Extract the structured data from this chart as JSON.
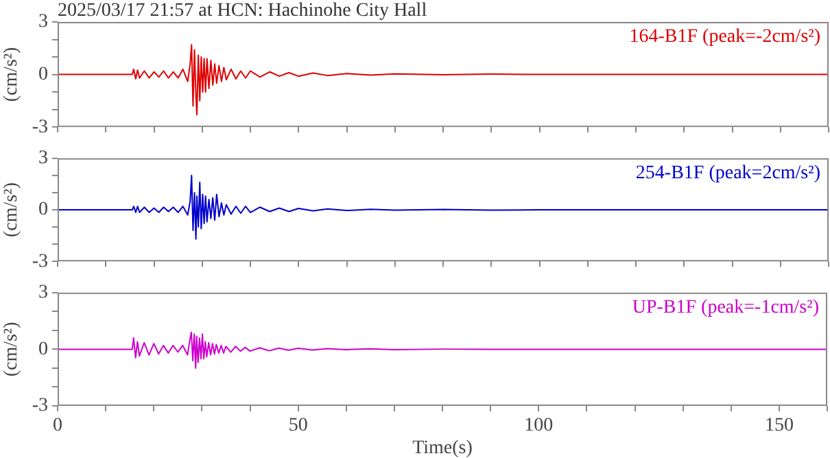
{
  "chart_data": [
    {
      "type": "line",
      "title": "2025/03/17 21:57 at HCN: Hachinohe City Hall",
      "ylabel": "(cm/s²)",
      "tick_labels": "y",
      "grid": false,
      "legend": false,
      "marker": "none",
      "xlim": [
        0,
        160
      ],
      "xticks": [
        0,
        {
          "value": 10,
          "label": null
        },
        {
          "value": 20,
          "label": null
        },
        {
          "value": 30,
          "label": null
        },
        {
          "value": 40,
          "label": null
        },
        50,
        {
          "value": 60,
          "label": null
        },
        {
          "value": 70,
          "label": null
        },
        {
          "value": 80,
          "label": null
        },
        {
          "value": 90,
          "label": null
        },
        100,
        {
          "value": 110,
          "label": null
        },
        {
          "value": 120,
          "label": null
        },
        {
          "value": 130,
          "label": null
        },
        {
          "value": 140,
          "label": null
        },
        150,
        {
          "value": 160,
          "label": null
        }
      ],
      "ylim": [
        -3,
        3
      ],
      "yticks": [
        -3,
        {
          "value": -2,
          "label": null
        },
        {
          "value": -1,
          "label": null
        },
        0,
        {
          "value": 1,
          "label": null
        },
        {
          "value": 2,
          "label": null
        },
        3
      ],
      "x": [
        0,
        15.5,
        15.8,
        16.2,
        16.6,
        17,
        18,
        19,
        20,
        21,
        22,
        23,
        24,
        25,
        26,
        27,
        27.5,
        27.8,
        28.1,
        28.4,
        28.7,
        28.9,
        29.2,
        29.5,
        29.8,
        30.1,
        30.4,
        30.7,
        31,
        31.4,
        31.8,
        32.2,
        32.6,
        33,
        33.5,
        34,
        34.5,
        35,
        36,
        37,
        38,
        39,
        40,
        42,
        44,
        46,
        48,
        50,
        53,
        56,
        60,
        65,
        70,
        80,
        90,
        100,
        160
      ],
      "series": [
        {
          "name": "164-B1F (peak=-2cm/s²)",
          "color": "#dd0000",
          "values": [
            0,
            0,
            0.3,
            -0.25,
            0.25,
            -0.2,
            0.2,
            -0.2,
            0.15,
            -0.15,
            0.2,
            -0.2,
            0.15,
            -0.2,
            0.3,
            -0.4,
            0.6,
            1.7,
            -1.8,
            1.4,
            -1.2,
            -2.3,
            1.1,
            -1.5,
            1.0,
            -1.0,
            0.9,
            -1.0,
            0.9,
            -0.8,
            0.8,
            -0.6,
            0.6,
            -0.5,
            0.5,
            -0.4,
            0.4,
            -0.3,
            0.3,
            -0.25,
            0.2,
            -0.2,
            0.2,
            -0.15,
            0.15,
            -0.1,
            0.1,
            -0.1,
            0.08,
            -0.06,
            0.05,
            -0.04,
            0.03,
            -0.02,
            0.02,
            0,
            0
          ]
        }
      ]
    },
    {
      "type": "line",
      "ylabel": "(cm/s²)",
      "tick_labels": "y",
      "grid": false,
      "legend": false,
      "marker": "none",
      "xlim": [
        0,
        160
      ],
      "xticks": [
        0,
        {
          "value": 10,
          "label": null
        },
        {
          "value": 20,
          "label": null
        },
        {
          "value": 30,
          "label": null
        },
        {
          "value": 40,
          "label": null
        },
        50,
        {
          "value": 60,
          "label": null
        },
        {
          "value": 70,
          "label": null
        },
        {
          "value": 80,
          "label": null
        },
        {
          "value": 90,
          "label": null
        },
        100,
        {
          "value": 110,
          "label": null
        },
        {
          "value": 120,
          "label": null
        },
        {
          "value": 130,
          "label": null
        },
        {
          "value": 140,
          "label": null
        },
        150,
        {
          "value": 160,
          "label": null
        }
      ],
      "ylim": [
        -3,
        3
      ],
      "yticks": [
        -3,
        {
          "value": -2,
          "label": null
        },
        {
          "value": -1,
          "label": null
        },
        0,
        {
          "value": 1,
          "label": null
        },
        {
          "value": 2,
          "label": null
        },
        3
      ],
      "x": [
        0,
        15.5,
        15.8,
        16.2,
        16.6,
        17,
        18,
        19,
        20,
        21,
        22,
        23,
        24,
        25,
        26,
        27,
        27.5,
        27.8,
        28.1,
        28.4,
        28.7,
        28.9,
        29.2,
        29.5,
        29.8,
        30.1,
        30.4,
        30.7,
        31,
        31.4,
        31.8,
        32.2,
        32.6,
        33,
        33.5,
        34,
        34.5,
        35,
        36,
        37,
        38,
        39,
        40,
        42,
        44,
        46,
        48,
        50,
        53,
        56,
        60,
        65,
        70,
        80,
        90,
        100,
        160
      ],
      "series": [
        {
          "name": "254-B1F (peak=2cm/s²)",
          "color": "#0000cc",
          "values": [
            0,
            0,
            0.2,
            -0.15,
            0.2,
            -0.15,
            0.15,
            -0.15,
            0.1,
            -0.15,
            0.15,
            -0.1,
            0.15,
            -0.15,
            0.2,
            -0.3,
            0.5,
            2.0,
            -1.2,
            1.0,
            -1.7,
            0.8,
            -1.0,
            1.6,
            -1.1,
            0.9,
            -0.8,
            0.8,
            -0.7,
            0.6,
            -0.5,
            0.7,
            -0.6,
            0.9,
            -0.4,
            0.4,
            -0.3,
            0.3,
            -0.25,
            0.2,
            -0.2,
            0.2,
            -0.15,
            0.15,
            -0.1,
            0.1,
            -0.1,
            0.08,
            -0.06,
            0.05,
            -0.04,
            0.03,
            -0.02,
            0.02,
            -0.02,
            0,
            0
          ]
        }
      ]
    },
    {
      "type": "line",
      "xlabel": "Time(s)",
      "ylabel": "(cm/s²)",
      "grid": false,
      "legend": false,
      "marker": "none",
      "xlim": [
        0,
        160
      ],
      "xticks": [
        0,
        {
          "value": 10,
          "label": null
        },
        {
          "value": 20,
          "label": null
        },
        {
          "value": 30,
          "label": null
        },
        {
          "value": 40,
          "label": null
        },
        50,
        {
          "value": 60,
          "label": null
        },
        {
          "value": 70,
          "label": null
        },
        {
          "value": 80,
          "label": null
        },
        {
          "value": 90,
          "label": null
        },
        100,
        {
          "value": 110,
          "label": null
        },
        {
          "value": 120,
          "label": null
        },
        {
          "value": 130,
          "label": null
        },
        {
          "value": 140,
          "label": null
        },
        150,
        {
          "value": 160,
          "label": null
        }
      ],
      "ylim": [
        -3,
        3
      ],
      "yticks": [
        -3,
        {
          "value": -2,
          "label": null
        },
        {
          "value": -1,
          "label": null
        },
        0,
        {
          "value": 1,
          "label": null
        },
        {
          "value": 2,
          "label": null
        },
        3
      ],
      "x": [
        0,
        15.5,
        15.8,
        16.2,
        16.6,
        17,
        18,
        19,
        20,
        21,
        22,
        23,
        24,
        25,
        26,
        27,
        27.5,
        27.8,
        28.1,
        28.4,
        28.7,
        28.9,
        29.2,
        29.5,
        29.8,
        30.1,
        30.4,
        30.7,
        31,
        31.4,
        31.8,
        32.2,
        32.6,
        33,
        33.5,
        34,
        34.5,
        35,
        36,
        37,
        38,
        39,
        40,
        42,
        44,
        46,
        48,
        50,
        53,
        56,
        60,
        65,
        70,
        80,
        90,
        100,
        160
      ],
      "series": [
        {
          "name": "UP-B1F (peak=-1cm/s²)",
          "color": "#cc00cc",
          "values": [
            0,
            0,
            0.6,
            -0.45,
            0.4,
            -0.35,
            0.35,
            -0.3,
            0.3,
            -0.25,
            0.2,
            -0.2,
            0.2,
            -0.15,
            0.2,
            -0.3,
            0.5,
            0.9,
            -0.6,
            0.8,
            -1.0,
            0.7,
            -0.7,
            0.6,
            -0.5,
            0.8,
            -0.5,
            0.4,
            -0.4,
            0.35,
            -0.3,
            0.3,
            -0.25,
            0.25,
            -0.2,
            0.2,
            -0.2,
            0.15,
            -0.15,
            0.15,
            -0.1,
            0.1,
            -0.1,
            0.08,
            -0.08,
            0.06,
            -0.05,
            0.05,
            -0.04,
            0.03,
            -0.02,
            0.02,
            -0.02,
            0.01,
            0,
            0,
            0
          ]
        }
      ]
    }
  ]
}
